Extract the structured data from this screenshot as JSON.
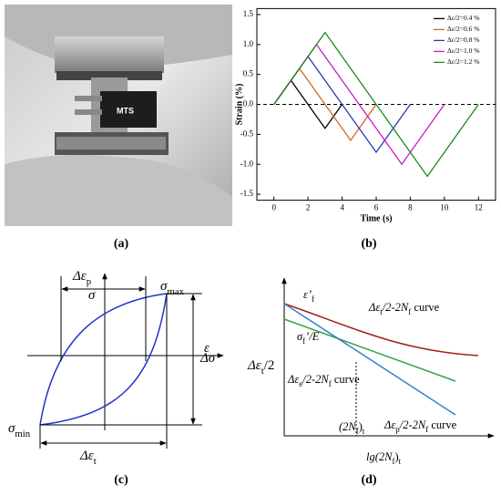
{
  "panel_labels": [
    "(a)",
    "(b)",
    "(c)",
    "(d)"
  ],
  "photo": {
    "device_text": "MTS"
  },
  "chart_data": {
    "type": "line",
    "x_label": "Time (s)",
    "y_label": "Strain (%)",
    "xlim": [
      -1,
      13
    ],
    "xticks": [
      0,
      2,
      4,
      6,
      8,
      10,
      12
    ],
    "ylim": [
      -1.6,
      1.6
    ],
    "yticks": [
      -1.5,
      {
        "value": -1,
        "label": "-1.0"
      },
      -0.5,
      {
        "value": 0,
        "label": "0.0"
      },
      0.5,
      {
        "value": 1,
        "label": "1.0"
      },
      1.5
    ],
    "hline": 0,
    "legend": "upper right",
    "series": [
      {
        "name": "Δε/2=0.4 %",
        "color": "#000000",
        "x": [
          0,
          1,
          3,
          4
        ],
        "values": [
          0,
          0.4,
          -0.4,
          0
        ]
      },
      {
        "name": "Δε/2=0.6 %",
        "color": "#d2691e",
        "x": [
          0,
          1.5,
          4.5,
          6
        ],
        "values": [
          0,
          0.6,
          -0.6,
          0
        ]
      },
      {
        "name": "Δε/2=0.8 %",
        "color": "#2a3bb0",
        "x": [
          0,
          2,
          6,
          8
        ],
        "values": [
          0,
          0.8,
          -0.8,
          0
        ]
      },
      {
        "name": "Δε/2=1.0 %",
        "color": "#c71fc7",
        "x": [
          0,
          2.5,
          7.5,
          10
        ],
        "values": [
          0,
          1.0,
          -1.0,
          0
        ]
      },
      {
        "name": "Δε/2=1.2 %",
        "color": "#1e8a1e",
        "x": [
          0,
          3,
          9,
          12
        ],
        "values": [
          0,
          1.2,
          -1.2,
          0
        ]
      }
    ]
  },
  "hysteresis": {
    "labels": [
      {
        "parts": [
          {
            "text": "Δε"
          },
          {
            "sub": "p"
          }
        ]
      },
      {
        "parts": [
          {
            "text": "σ"
          }
        ]
      },
      {
        "parts": [
          {
            "text": "σ"
          },
          {
            "sub": "max"
          }
        ]
      },
      {
        "parts": [
          {
            "text": "ε"
          }
        ]
      },
      {
        "parts": [
          {
            "text": "Δσ"
          }
        ]
      },
      {
        "parts": [
          {
            "text": "σ"
          },
          {
            "sub": "min"
          }
        ]
      },
      {
        "parts": [
          {
            "text": "Δε"
          },
          {
            "sub": "t"
          }
        ]
      }
    ]
  },
  "strain_life": {
    "labels": [
      {
        "parts": [
          {
            "text": "ε’"
          },
          {
            "sub": "f"
          }
        ]
      },
      {
        "parts": [
          {
            "text": "Δε"
          },
          {
            "sub": "t"
          },
          {
            "text": "/2-2N"
          },
          {
            "sub": "f"
          },
          {
            "text": " curve"
          }
        ]
      },
      {
        "parts": [
          {
            "text": "σ"
          },
          {
            "sub": "f"
          },
          {
            "text": "’/E"
          }
        ]
      },
      {
        "parts": [
          {
            "text": "Δε"
          },
          {
            "sub": "e"
          },
          {
            "text": "/2-2N"
          },
          {
            "sub": "f"
          },
          {
            "text": " curve"
          }
        ]
      },
      {
        "parts": [
          {
            "text": "Δε"
          },
          {
            "sub": "t"
          },
          {
            "text": "/2"
          }
        ]
      },
      {
        "parts": [
          {
            "text": "(2N"
          },
          {
            "sub": "f"
          },
          {
            "text": ")"
          },
          {
            "sub": "t"
          }
        ]
      },
      {
        "parts": [
          {
            "text": "Δε"
          },
          {
            "sub": "p"
          },
          {
            "text": "/2-2N"
          },
          {
            "sub": "f"
          },
          {
            "text": " curve"
          }
        ]
      },
      {
        "parts": [
          {
            "text": "lg(2N"
          },
          {
            "sub": "f"
          },
          {
            "text": ")"
          },
          {
            "sub": "t"
          }
        ]
      }
    ]
  }
}
